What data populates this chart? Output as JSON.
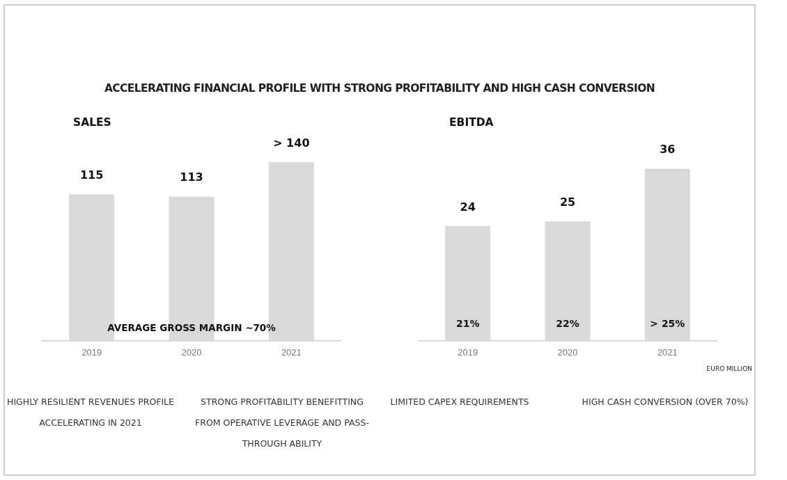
{
  "chart_data": [
    {
      "type": "bar",
      "title": "SALES",
      "categories": [
        "2019",
        "2020",
        "2021"
      ],
      "values": [
        115,
        113,
        140
      ],
      "value_labels": [
        "115",
        "113",
        "> 140"
      ],
      "color": "#d9d9d9",
      "annotations": [
        "ACCELERATING FINANCIAL PROFILE WITH STRONG PROFITABILITY AND HIGH CASH CONVERSION",
        "AVERAGE GROSS MARGIN ~70%",
        "HIGHLY RESILIENT REVENUES PROFILE ACCELERATING IN 2021",
        "STRONG PROFITABILITY BENEFITTING FROM OPERATIVE LEVERAGE AND PASS-THROUGH ABILITY"
      ]
    },
    {
      "type": "bar",
      "title": "EBITDA",
      "categories": [
        "2019",
        "2020",
        "2021"
      ],
      "values": [
        24,
        25,
        36
      ],
      "value_labels": [
        "24",
        "25",
        "36"
      ],
      "color": "#d9d9d9",
      "annotations": [
        "21%",
        "22%",
        "> 25%",
        "EURO MILLION",
        "LIMITED CAPEX REQUIREMENTS",
        "HIGH CASH CONVERSION (OVER 70%)"
      ]
    }
  ]
}
